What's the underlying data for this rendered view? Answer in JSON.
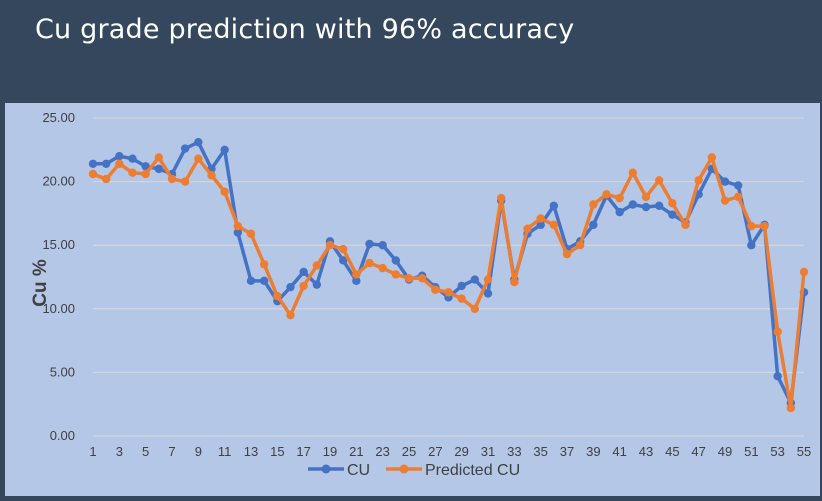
{
  "slide": {
    "title": "Cu grade prediction with 96% accuracy"
  },
  "colors": {
    "background": "#34475c",
    "plot_area": "#b4c7e7",
    "cu": "#4472c4",
    "predicted": "#ed7d31",
    "grid": "#d9d9d9"
  },
  "chart_data": {
    "type": "line",
    "title": "",
    "xlabel": "",
    "ylabel": "Cu %",
    "ylim": [
      0,
      25
    ],
    "y_ticks": [
      "0.00",
      "5.00",
      "10.00",
      "15.00",
      "20.00",
      "25.00"
    ],
    "x_ticks": [
      "1",
      "3",
      "5",
      "7",
      "9",
      "11",
      "13",
      "15",
      "17",
      "19",
      "21",
      "23",
      "25",
      "27",
      "29",
      "31",
      "33",
      "35",
      "37",
      "39",
      "41",
      "43",
      "45",
      "47",
      "49",
      "51",
      "53",
      "55"
    ],
    "grid": "horizontal",
    "legend_position": "bottom",
    "x": [
      1,
      2,
      3,
      4,
      5,
      6,
      7,
      8,
      9,
      10,
      11,
      12,
      13,
      14,
      15,
      16,
      17,
      18,
      19,
      20,
      21,
      22,
      23,
      24,
      25,
      26,
      27,
      28,
      29,
      30,
      31,
      32,
      33,
      34,
      35,
      36,
      37,
      38,
      39,
      40,
      41,
      42,
      43,
      44,
      45,
      46,
      47,
      48,
      49,
      50,
      51,
      52,
      53,
      54,
      55
    ],
    "series": [
      {
        "name": "CU",
        "color": "#4472c4",
        "values": [
          21.4,
          21.4,
          22.0,
          21.8,
          21.2,
          21.0,
          20.6,
          22.6,
          23.1,
          21.0,
          22.5,
          16.0,
          12.2,
          12.2,
          10.6,
          11.7,
          12.9,
          11.9,
          15.3,
          13.8,
          12.2,
          15.1,
          15.0,
          13.8,
          12.3,
          12.6,
          11.7,
          10.9,
          11.8,
          12.3,
          11.2,
          18.5,
          12.3,
          15.9,
          16.6,
          18.1,
          14.7,
          15.3,
          16.6,
          18.9,
          17.6,
          18.2,
          18.0,
          18.1,
          17.4,
          16.8,
          19.0,
          21.0,
          20.0,
          19.7,
          15.0,
          16.6,
          4.7,
          2.6,
          11.3
        ]
      },
      {
        "name": "Predicted CU",
        "color": "#ed7d31",
        "values": [
          20.6,
          20.2,
          21.4,
          20.7,
          20.6,
          21.9,
          20.2,
          20.0,
          21.8,
          20.5,
          19.2,
          16.5,
          15.9,
          13.5,
          11.0,
          9.5,
          11.8,
          13.4,
          15.0,
          14.7,
          12.7,
          13.6,
          13.2,
          12.7,
          12.4,
          12.4,
          11.5,
          11.3,
          10.8,
          10.0,
          12.3,
          18.7,
          12.1,
          16.3,
          17.1,
          16.6,
          14.3,
          15.0,
          18.2,
          19.0,
          18.7,
          20.7,
          18.8,
          20.1,
          18.3,
          16.6,
          20.1,
          21.9,
          18.5,
          18.8,
          16.5,
          16.5,
          8.2,
          2.2,
          12.9
        ]
      }
    ]
  }
}
